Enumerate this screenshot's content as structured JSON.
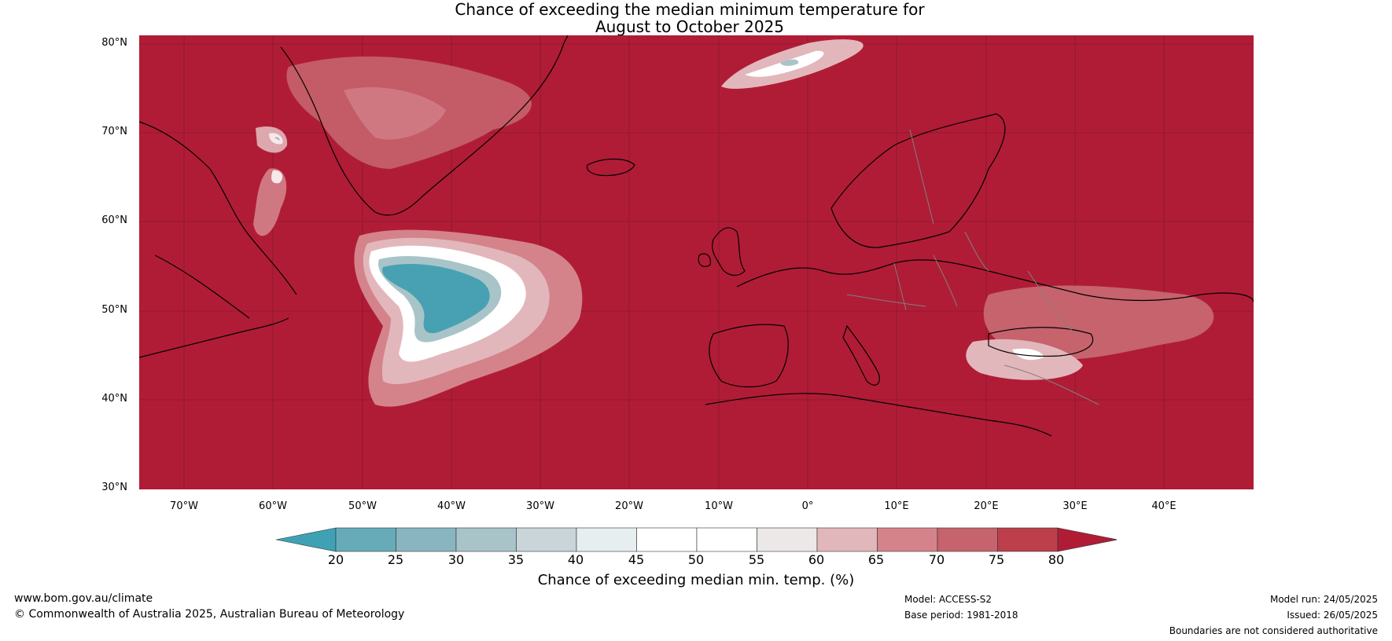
{
  "title_line1": "Chance of exceeding the median minimum temperature for",
  "title_line2": "August to October 2025",
  "lat_labels": [
    "80°N",
    "70°N",
    "60°N",
    "50°N",
    "40°N",
    "30°N"
  ],
  "lon_labels": [
    "70°W",
    "60°W",
    "50°W",
    "40°W",
    "30°W",
    "20°W",
    "10°W",
    "0°",
    "10°E",
    "20°E",
    "30°E",
    "40°E"
  ],
  "colorbar": {
    "ticks": [
      "20",
      "25",
      "30",
      "35",
      "40",
      "45",
      "50",
      "55",
      "60",
      "65",
      "70",
      "75",
      "80"
    ],
    "colors": [
      "#3fa2b4",
      "#67abb9",
      "#88b5c0",
      "#a9c4c8",
      "#c9d5d8",
      "#e7eeef",
      "#ffffff",
      "#ffffff",
      "#ece8e8",
      "#e2b7bb",
      "#d4838b",
      "#c6636c",
      "#bd3f4c",
      "#b01c36"
    ],
    "title": "Chance of exceeding median min. temp. (%)"
  },
  "map_colors": {
    "above": "#b01c36",
    "coast": "#000000",
    "border": "#808080",
    "teal": "#47a1b3"
  },
  "footer": {
    "website": "www.bom.gov.au/climate",
    "copyright": "© Commonwealth of Australia 2025, Australian Bureau of Meteorology",
    "model": "Model: ACCESS-S2",
    "base_period": "Base period: 1981-2018",
    "model_run": "Model run: 24/05/2025",
    "issued": "Issued: 26/05/2025",
    "disclaimer": "Boundaries are not considered authoritative"
  }
}
